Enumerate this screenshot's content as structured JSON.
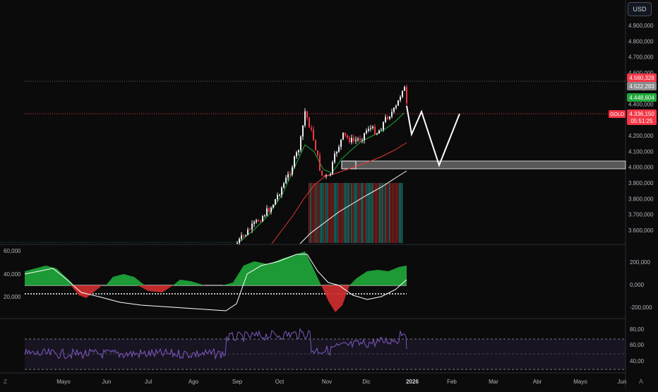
{
  "currency_button": "USD",
  "symbol_tag": "GOLD",
  "price_labels": {
    "high": "4.560,328",
    "mid": "4.522,283",
    "green": "4.448,604",
    "current": "4.336,150",
    "countdown": "05:51:25"
  },
  "price_axis_ticks": [
    "4.900,000",
    "4.800,000",
    "4.700,000",
    "4.600,000",
    "4.500,000",
    "4.400,000",
    "4.300,000",
    "4.200,000",
    "4.100,000",
    "4.000,000",
    "3.900,000",
    "3.800,000",
    "3.700,000",
    "3.600,000"
  ],
  "osc_left_ticks": [
    "60,000",
    "40,000",
    "20,000"
  ],
  "osc_right_ticks": [
    "200,000",
    "0,000",
    "-200,000"
  ],
  "rsi_ticks": [
    "80,00",
    "60,00",
    "40,00"
  ],
  "time_labels": [
    "Mayo",
    "Jun",
    "Jul",
    "Ago",
    "Sep",
    "Oct",
    "Nov",
    "Dic",
    "2026",
    "Feb",
    "Mar",
    "Abr",
    "Mayo",
    "Jun"
  ],
  "bottom_icons": [
    "tradingview-logo-icon",
    "auto-scale-icon"
  ],
  "colors": {
    "background": "#0b0b0b",
    "up": "#ebebeb",
    "down": "#f23645",
    "green": "#1fa83a",
    "price_line": "#f23645",
    "rsi": "#7e57c2",
    "volume_teal": "#26a69a"
  }
}
